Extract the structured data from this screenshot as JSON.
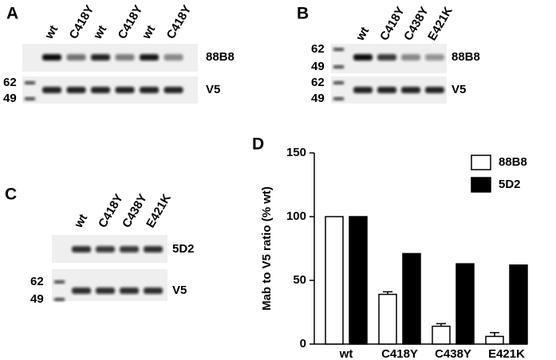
{
  "panels": {
    "A": {
      "label": "A",
      "lanes": [
        "wt",
        "C418Y",
        "wt",
        "C418Y",
        "wt",
        "C418Y"
      ],
      "blots": [
        "88B8",
        "V5"
      ],
      "markers": [
        "62",
        "49"
      ]
    },
    "B": {
      "label": "B",
      "lanes": [
        "wt",
        "C418Y",
        "C438Y",
        "E421K"
      ],
      "blots": [
        "88B8",
        "V5"
      ],
      "markers": [
        "62",
        "49",
        "62",
        "49"
      ]
    },
    "C": {
      "label": "C",
      "lanes": [
        "wt",
        "C418Y",
        "C438Y",
        "E421K"
      ],
      "blots": [
        "5D2",
        "V5"
      ],
      "markers": [
        "62",
        "49"
      ]
    }
  },
  "chart_data": {
    "type": "bar",
    "panel_label": "D",
    "y_label": "Mab to V5 ratio (% wt)",
    "categories": [
      "wt",
      "C418Y",
      "C438Y",
      "E421K"
    ],
    "series": [
      {
        "name": "88B8",
        "color": "#ffffff",
        "values": [
          100,
          39,
          14,
          6
        ],
        "errors": [
          null,
          2,
          2,
          3
        ]
      },
      {
        "name": "5D2",
        "color": "#000000",
        "values": [
          100,
          71,
          63,
          62
        ]
      }
    ],
    "ylim": [
      0,
      150
    ],
    "yticks": [
      0,
      50,
      100,
      150
    ],
    "legend": "upper right"
  }
}
